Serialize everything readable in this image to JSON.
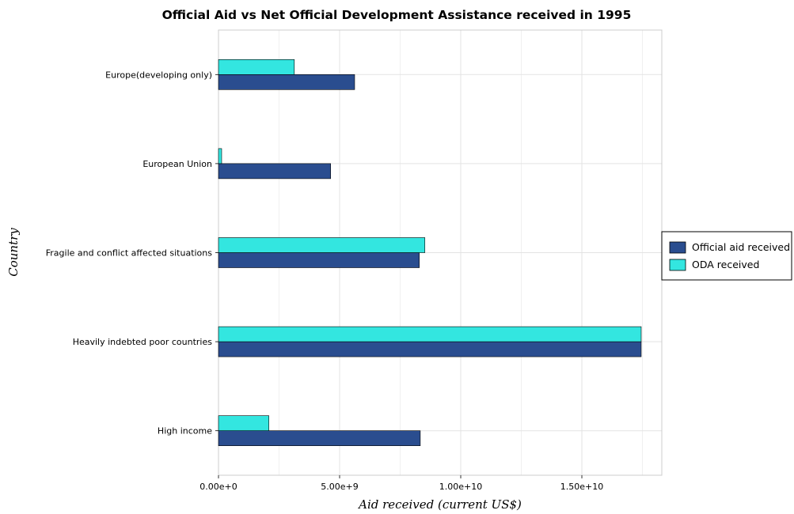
{
  "chart_data": {
    "type": "bar",
    "orientation": "horizontal",
    "title": "Official Aid vs Net Official Development Assistance received in 1995",
    "xlabel": "Aid received (current US$)",
    "ylabel": "Country",
    "categories": [
      "Europe(developing only)",
      "European Union",
      "Fragile and conflict affected situations",
      "Heavily indebted poor countries",
      "High income"
    ],
    "series": [
      {
        "name": "Official aid received",
        "color": "#2a4d8f",
        "values": [
          5620000000,
          4630000000,
          8290000000,
          17450000000,
          8330000000
        ]
      },
      {
        "name": "ODA received",
        "color": "#33e6e0",
        "values": [
          3130000000,
          130000000,
          8520000000,
          17450000000,
          2080000000
        ]
      }
    ],
    "xlim": [
      0,
      18300000000
    ],
    "xticks": [
      0,
      5000000000,
      10000000000,
      15000000000
    ],
    "xtick_labels": [
      "0.00e+0",
      "5.00e+9",
      "1.00e+10",
      "1.50e+10"
    ],
    "grid": true,
    "legend_position": "right"
  }
}
